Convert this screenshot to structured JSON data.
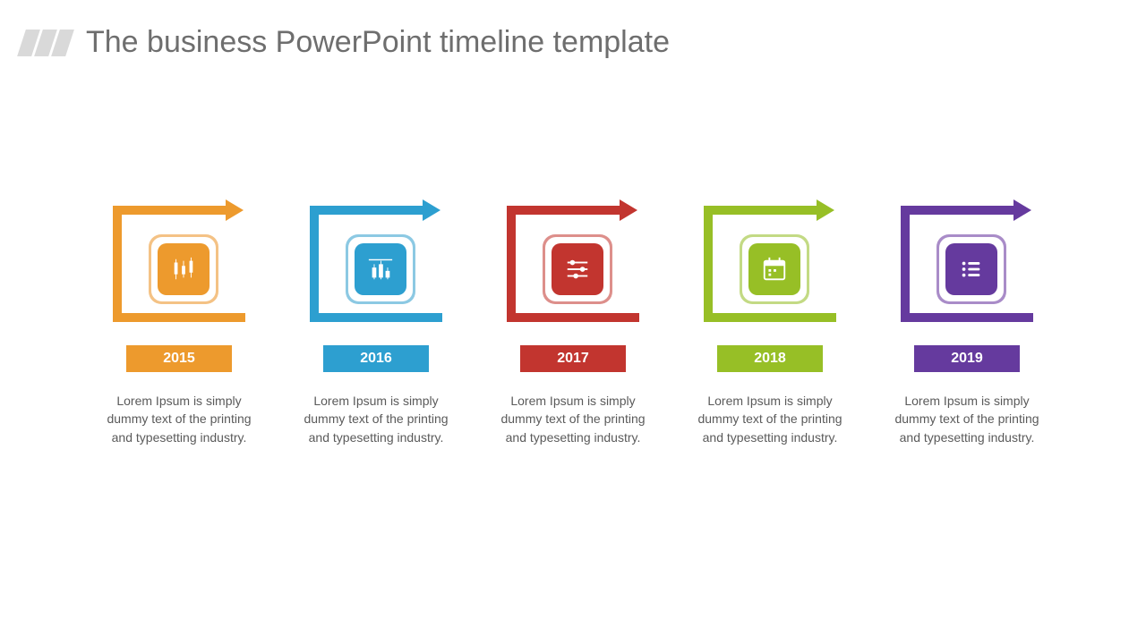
{
  "header": {
    "title": "The business PowerPoint timeline template",
    "title_color": "#6e6e6e",
    "title_fontsize": 34,
    "stripe_color": "#d9d9d9"
  },
  "timeline": {
    "background_color": "#ffffff",
    "items": [
      {
        "year": "2015",
        "color": "#ed9a2d",
        "color_light": "#f4c285",
        "icon": "candlestick-chart-icon",
        "description": "Lorem Ipsum is simply dummy text of the printing and typesetting industry."
      },
      {
        "year": "2016",
        "color": "#2d9fd0",
        "color_light": "#8cc9e3",
        "icon": "bar-chart-icon",
        "description": "Lorem Ipsum is simply dummy text of the printing and typesetting industry."
      },
      {
        "year": "2017",
        "color": "#c2352f",
        "color_light": "#dd8f8b",
        "icon": "sliders-icon",
        "description": "Lorem Ipsum is simply dummy text of the printing and typesetting industry."
      },
      {
        "year": "2018",
        "color": "#97bf26",
        "color_light": "#c3da84",
        "icon": "calendar-icon",
        "description": "Lorem Ipsum is simply dummy text of the printing and typesetting industry."
      },
      {
        "year": "2019",
        "color": "#653a9e",
        "color_light": "#a98cc8",
        "icon": "list-icon",
        "description": "Lorem Ipsum is simply dummy text of the printing and typesetting industry."
      }
    ],
    "year_box": {
      "width": 118,
      "height": 30,
      "font_color": "#ffffff",
      "fontsize": 16
    },
    "desc_style": {
      "fontsize": 14,
      "color": "#5a5a5a"
    }
  }
}
